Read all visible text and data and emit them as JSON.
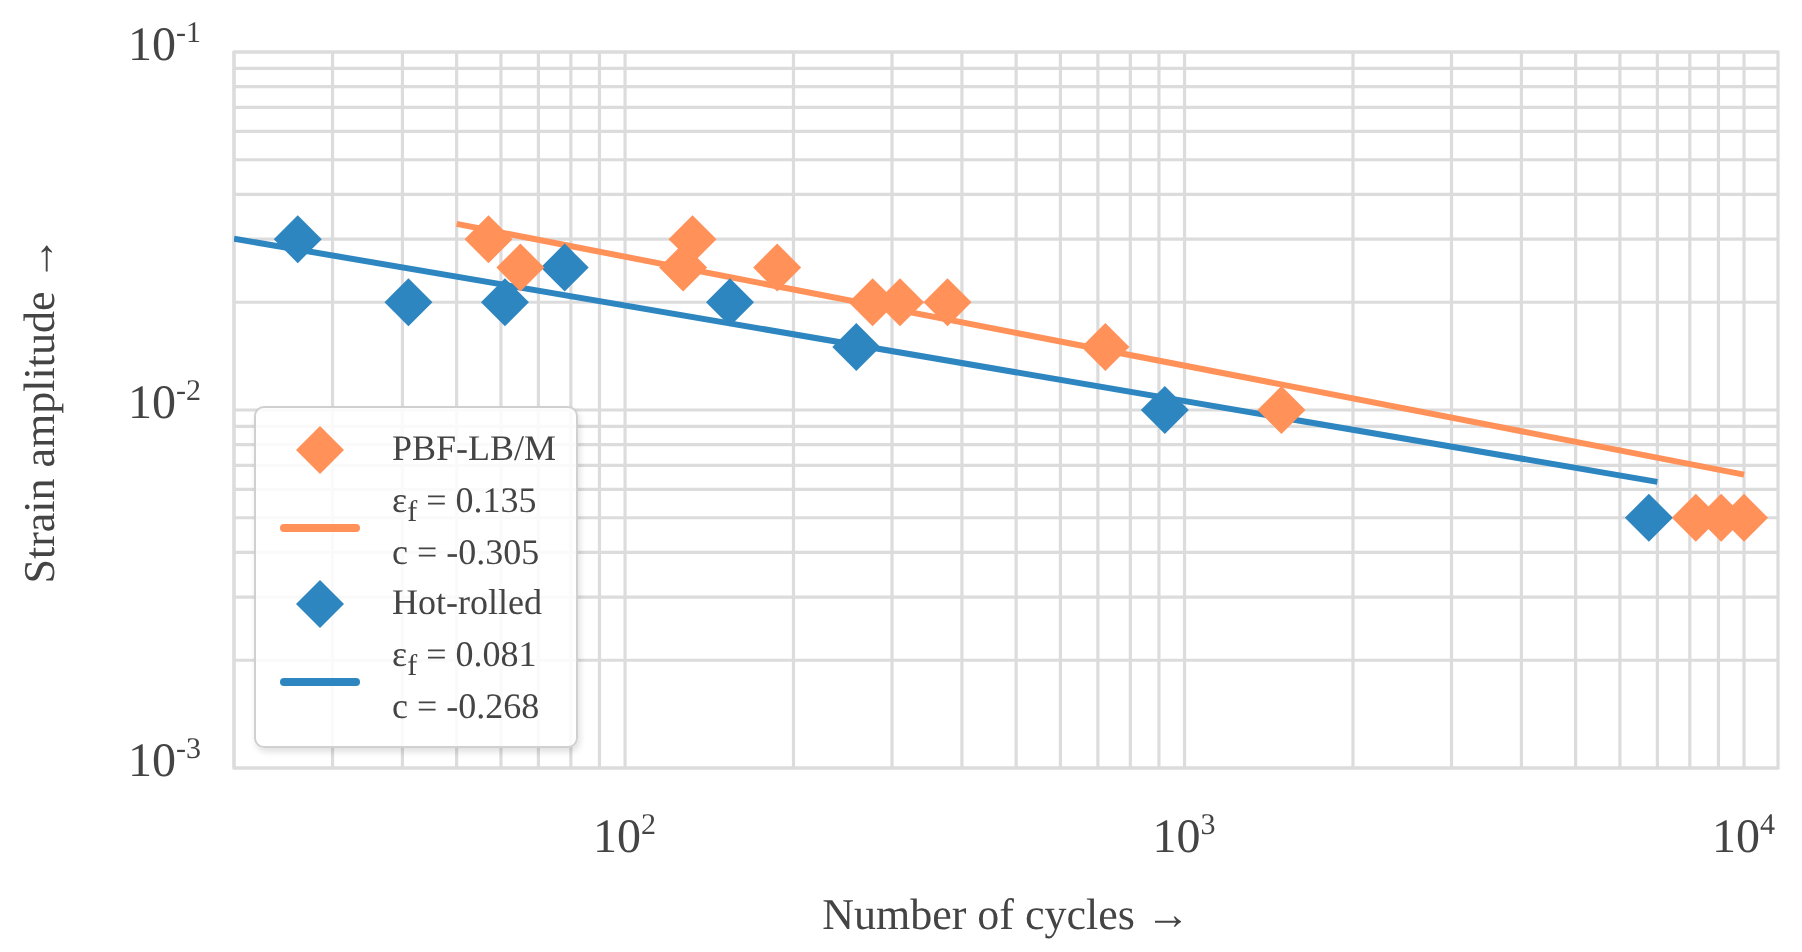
{
  "chart_data": {
    "type": "scatter",
    "xlabel": "Number of cycles →",
    "ylabel": "Strain amplitude →",
    "log": "xy",
    "xlim": [
      20,
      11500
    ],
    "ylim": [
      0.001,
      0.1
    ],
    "xticks": [
      {
        "value": 100,
        "label": "10$^{2}$"
      },
      {
        "value": 1000,
        "label": "10$^{3}$"
      },
      {
        "value": 10000,
        "label": "10$^{4}$"
      }
    ],
    "yticks": [
      {
        "value": 0.001,
        "label": "10$^{-3}$"
      },
      {
        "value": 0.01,
        "label": "10$^{-2}$"
      },
      {
        "value": 0.1,
        "label": "10$^{-1}$"
      }
    ],
    "grid": true,
    "legend": "bottom left",
    "marker": "diamond",
    "series": [
      {
        "type": "scatter",
        "name": "PBF-LB/M",
        "color": "#ff9159",
        "x": [
          57,
          65,
          127,
          132,
          187,
          277,
          310,
          377,
          722,
          1490,
          8200,
          9100,
          10000
        ],
        "values": [
          0.03,
          0.025,
          0.025,
          0.03,
          0.025,
          0.02,
          0.02,
          0.02,
          0.015,
          0.01,
          0.005,
          0.005,
          0.005
        ]
      },
      {
        "type": "line",
        "name": "ε$_{f}$ = 0.135\nc = -0.305",
        "color": "#ff9159",
        "marker": "none",
        "x": [
          50,
          10000
        ],
        "values": [
          0.0331,
          0.0066
        ]
      },
      {
        "type": "scatter",
        "name": "Hot-rolled",
        "color": "#2e86c1",
        "x": [
          26,
          41,
          61,
          78,
          154,
          259,
          922,
          6760
        ],
        "values": [
          0.03,
          0.02,
          0.02,
          0.025,
          0.02,
          0.015,
          0.01,
          0.005
        ]
      },
      {
        "type": "line",
        "name": "ε$_{f}$ = 0.081\nc = -0.268",
        "color": "#2e86c1",
        "marker": "none",
        "x": [
          20,
          7000
        ],
        "values": [
          0.0301,
          0.0063
        ]
      }
    ]
  }
}
